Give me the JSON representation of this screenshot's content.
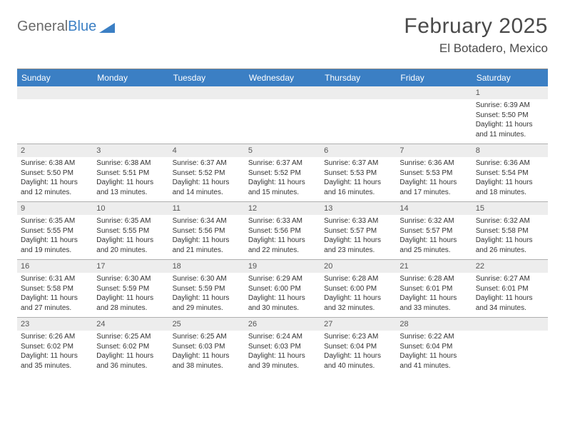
{
  "logo": {
    "text1": "General",
    "text2": "Blue"
  },
  "title": "February 2025",
  "location": "El Botadero, Mexico",
  "weekdays": [
    "Sunday",
    "Monday",
    "Tuesday",
    "Wednesday",
    "Thursday",
    "Friday",
    "Saturday"
  ],
  "colors": {
    "header_bar": "#3b7fc4",
    "header_text": "#ffffff",
    "daynum_bg": "#ededed",
    "grid_line": "#b0b0b0",
    "body_text": "#333333",
    "title_text": "#4a4a4a"
  },
  "weeks": [
    [
      {
        "num": "",
        "lines": []
      },
      {
        "num": "",
        "lines": []
      },
      {
        "num": "",
        "lines": []
      },
      {
        "num": "",
        "lines": []
      },
      {
        "num": "",
        "lines": []
      },
      {
        "num": "",
        "lines": []
      },
      {
        "num": "1",
        "lines": [
          "Sunrise: 6:39 AM",
          "Sunset: 5:50 PM",
          "Daylight: 11 hours",
          "and 11 minutes."
        ]
      }
    ],
    [
      {
        "num": "2",
        "lines": [
          "Sunrise: 6:38 AM",
          "Sunset: 5:50 PM",
          "Daylight: 11 hours",
          "and 12 minutes."
        ]
      },
      {
        "num": "3",
        "lines": [
          "Sunrise: 6:38 AM",
          "Sunset: 5:51 PM",
          "Daylight: 11 hours",
          "and 13 minutes."
        ]
      },
      {
        "num": "4",
        "lines": [
          "Sunrise: 6:37 AM",
          "Sunset: 5:52 PM",
          "Daylight: 11 hours",
          "and 14 minutes."
        ]
      },
      {
        "num": "5",
        "lines": [
          "Sunrise: 6:37 AM",
          "Sunset: 5:52 PM",
          "Daylight: 11 hours",
          "and 15 minutes."
        ]
      },
      {
        "num": "6",
        "lines": [
          "Sunrise: 6:37 AM",
          "Sunset: 5:53 PM",
          "Daylight: 11 hours",
          "and 16 minutes."
        ]
      },
      {
        "num": "7",
        "lines": [
          "Sunrise: 6:36 AM",
          "Sunset: 5:53 PM",
          "Daylight: 11 hours",
          "and 17 minutes."
        ]
      },
      {
        "num": "8",
        "lines": [
          "Sunrise: 6:36 AM",
          "Sunset: 5:54 PM",
          "Daylight: 11 hours",
          "and 18 minutes."
        ]
      }
    ],
    [
      {
        "num": "9",
        "lines": [
          "Sunrise: 6:35 AM",
          "Sunset: 5:55 PM",
          "Daylight: 11 hours",
          "and 19 minutes."
        ]
      },
      {
        "num": "10",
        "lines": [
          "Sunrise: 6:35 AM",
          "Sunset: 5:55 PM",
          "Daylight: 11 hours",
          "and 20 minutes."
        ]
      },
      {
        "num": "11",
        "lines": [
          "Sunrise: 6:34 AM",
          "Sunset: 5:56 PM",
          "Daylight: 11 hours",
          "and 21 minutes."
        ]
      },
      {
        "num": "12",
        "lines": [
          "Sunrise: 6:33 AM",
          "Sunset: 5:56 PM",
          "Daylight: 11 hours",
          "and 22 minutes."
        ]
      },
      {
        "num": "13",
        "lines": [
          "Sunrise: 6:33 AM",
          "Sunset: 5:57 PM",
          "Daylight: 11 hours",
          "and 23 minutes."
        ]
      },
      {
        "num": "14",
        "lines": [
          "Sunrise: 6:32 AM",
          "Sunset: 5:57 PM",
          "Daylight: 11 hours",
          "and 25 minutes."
        ]
      },
      {
        "num": "15",
        "lines": [
          "Sunrise: 6:32 AM",
          "Sunset: 5:58 PM",
          "Daylight: 11 hours",
          "and 26 minutes."
        ]
      }
    ],
    [
      {
        "num": "16",
        "lines": [
          "Sunrise: 6:31 AM",
          "Sunset: 5:58 PM",
          "Daylight: 11 hours",
          "and 27 minutes."
        ]
      },
      {
        "num": "17",
        "lines": [
          "Sunrise: 6:30 AM",
          "Sunset: 5:59 PM",
          "Daylight: 11 hours",
          "and 28 minutes."
        ]
      },
      {
        "num": "18",
        "lines": [
          "Sunrise: 6:30 AM",
          "Sunset: 5:59 PM",
          "Daylight: 11 hours",
          "and 29 minutes."
        ]
      },
      {
        "num": "19",
        "lines": [
          "Sunrise: 6:29 AM",
          "Sunset: 6:00 PM",
          "Daylight: 11 hours",
          "and 30 minutes."
        ]
      },
      {
        "num": "20",
        "lines": [
          "Sunrise: 6:28 AM",
          "Sunset: 6:00 PM",
          "Daylight: 11 hours",
          "and 32 minutes."
        ]
      },
      {
        "num": "21",
        "lines": [
          "Sunrise: 6:28 AM",
          "Sunset: 6:01 PM",
          "Daylight: 11 hours",
          "and 33 minutes."
        ]
      },
      {
        "num": "22",
        "lines": [
          "Sunrise: 6:27 AM",
          "Sunset: 6:01 PM",
          "Daylight: 11 hours",
          "and 34 minutes."
        ]
      }
    ],
    [
      {
        "num": "23",
        "lines": [
          "Sunrise: 6:26 AM",
          "Sunset: 6:02 PM",
          "Daylight: 11 hours",
          "and 35 minutes."
        ]
      },
      {
        "num": "24",
        "lines": [
          "Sunrise: 6:25 AM",
          "Sunset: 6:02 PM",
          "Daylight: 11 hours",
          "and 36 minutes."
        ]
      },
      {
        "num": "25",
        "lines": [
          "Sunrise: 6:25 AM",
          "Sunset: 6:03 PM",
          "Daylight: 11 hours",
          "and 38 minutes."
        ]
      },
      {
        "num": "26",
        "lines": [
          "Sunrise: 6:24 AM",
          "Sunset: 6:03 PM",
          "Daylight: 11 hours",
          "and 39 minutes."
        ]
      },
      {
        "num": "27",
        "lines": [
          "Sunrise: 6:23 AM",
          "Sunset: 6:04 PM",
          "Daylight: 11 hours",
          "and 40 minutes."
        ]
      },
      {
        "num": "28",
        "lines": [
          "Sunrise: 6:22 AM",
          "Sunset: 6:04 PM",
          "Daylight: 11 hours",
          "and 41 minutes."
        ]
      },
      {
        "num": "",
        "lines": []
      }
    ]
  ]
}
